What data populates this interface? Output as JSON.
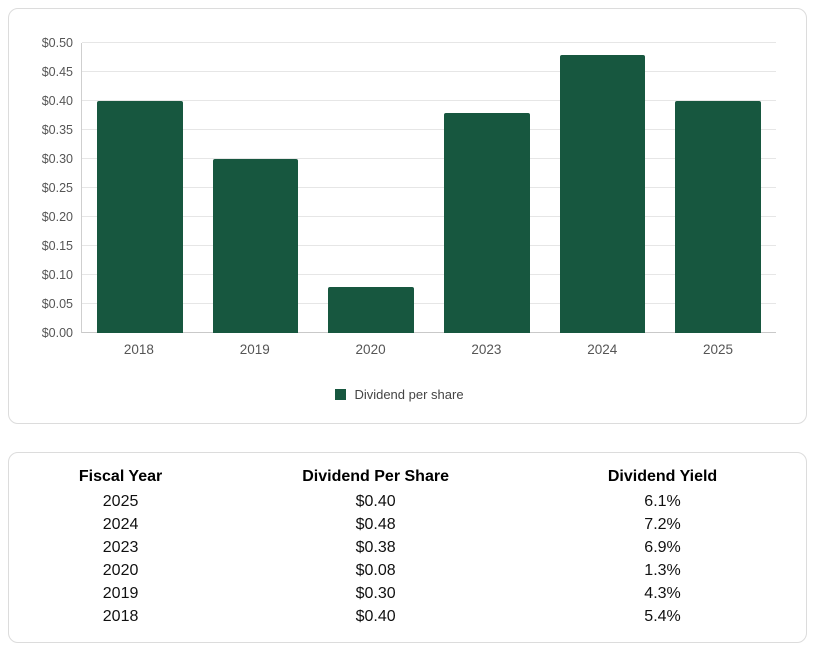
{
  "chart_data": {
    "type": "bar",
    "categories": [
      "2018",
      "2019",
      "2020",
      "2023",
      "2024",
      "2025"
    ],
    "values": [
      0.4,
      0.3,
      0.08,
      0.38,
      0.48,
      0.4
    ],
    "series_name": "Dividend per share",
    "title": "",
    "xlabel": "",
    "ylabel": "",
    "ylim": [
      0,
      0.5
    ],
    "ytick_labels": [
      "$0.00",
      "$0.05",
      "$0.10",
      "$0.15",
      "$0.20",
      "$0.25",
      "$0.30",
      "$0.35",
      "$0.40",
      "$0.45",
      "$0.50"
    ],
    "grid": true,
    "legend_position": "bottom",
    "bar_color": "#17573f"
  },
  "table": {
    "headers": [
      "Fiscal Year",
      "Dividend Per Share",
      "Dividend Yield"
    ],
    "rows": [
      [
        "2025",
        "$0.40",
        "6.1%"
      ],
      [
        "2024",
        "$0.48",
        "7.2%"
      ],
      [
        "2023",
        "$0.38",
        "6.9%"
      ],
      [
        "2020",
        "$0.08",
        "1.3%"
      ],
      [
        "2019",
        "$0.30",
        "4.3%"
      ],
      [
        "2018",
        "$0.40",
        "5.4%"
      ]
    ]
  },
  "colors": {
    "bar": "#17573f",
    "grid": "#e6e6e6",
    "axis_text": "#555555",
    "card_border": "#dcdcdc"
  }
}
